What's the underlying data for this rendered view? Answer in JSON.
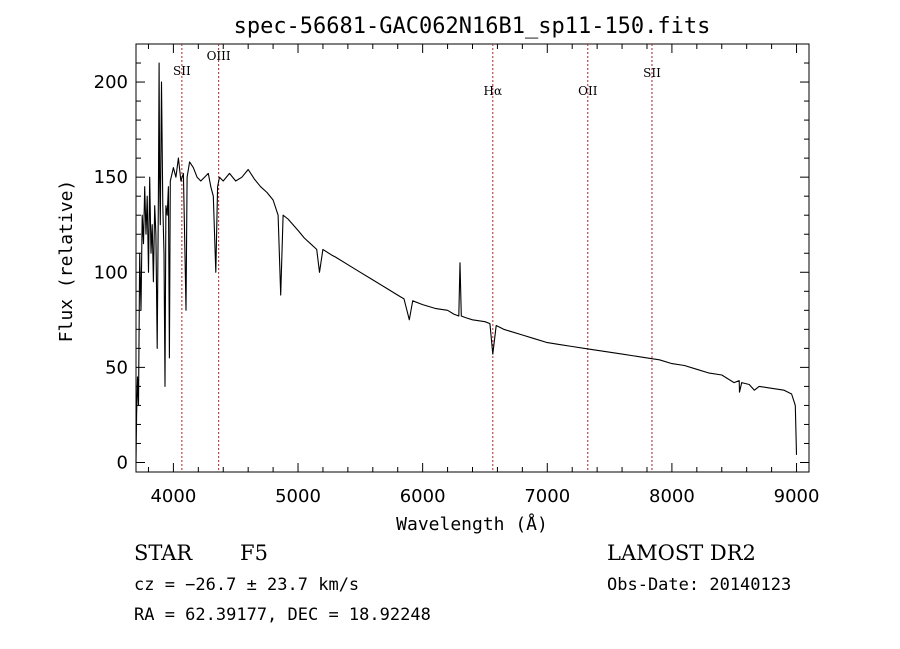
{
  "chart_data": {
    "type": "line",
    "title": "spec-56681-GAC062N16B1_sp11-150.fits",
    "xlabel": "Wavelength (Å)",
    "ylabel": "Flux (relative)",
    "xlim": [
      3700,
      9100
    ],
    "ylim": [
      -5,
      220
    ],
    "x_ticks": [
      4000,
      5000,
      6000,
      7000,
      8000,
      9000
    ],
    "y_ticks": [
      0,
      50,
      100,
      150,
      200
    ],
    "grid": false,
    "line_color": "#000000",
    "marker_color": "#b22222",
    "spectral_lines": [
      {
        "label": "SII",
        "x": 4068
      },
      {
        "label": "OIII",
        "x": 4363
      },
      {
        "label": "Hα",
        "x": 6563
      },
      {
        "label": "OII",
        "x": 7325
      },
      {
        "label": "SII",
        "x": 7840
      }
    ],
    "series": [
      {
        "x": [
          3700,
          3705,
          3712,
          3720,
          3730,
          3740,
          3750,
          3760,
          3770,
          3780,
          3790,
          3800,
          3810,
          3820,
          3830,
          3840,
          3850,
          3860,
          3870,
          3880,
          3885,
          3889,
          3895,
          3905,
          3915,
          3925,
          3933,
          3940,
          3950,
          3960,
          3968,
          3975,
          3990,
          4000,
          4020,
          4040,
          4060,
          4080,
          4090,
          4101,
          4110,
          4130,
          4160,
          4190,
          4220,
          4250,
          4280,
          4300,
          4320,
          4340,
          4355,
          4370,
          4400,
          4450,
          4500,
          4550,
          4600,
          4650,
          4700,
          4750,
          4800,
          4840,
          4861,
          4880,
          4920,
          5000,
          5050,
          5100,
          5150,
          5172,
          5200,
          5270,
          5300,
          5400,
          5500,
          5600,
          5700,
          5800,
          5850,
          5893,
          5920,
          6000,
          6100,
          6200,
          6250,
          6290,
          6300,
          6310,
          6350,
          6400,
          6500,
          6540,
          6563,
          6590,
          6650,
          6700,
          6800,
          6900,
          7000,
          7100,
          7200,
          7300,
          7400,
          7500,
          7600,
          7700,
          7800,
          7900,
          8000,
          8100,
          8200,
          8300,
          8400,
          8498,
          8540,
          8542,
          8560,
          8620,
          8662,
          8700,
          8800,
          8900,
          8960,
          8990,
          9000
        ],
        "y": [
          0,
          25,
          45,
          30,
          110,
          80,
          130,
          115,
          145,
          120,
          140,
          100,
          150,
          110,
          125,
          95,
          135,
          120,
          60,
          140,
          210,
          150,
          125,
          200,
          135,
          110,
          40,
          135,
          130,
          145,
          55,
          148,
          152,
          155,
          150,
          160,
          148,
          152,
          120,
          80,
          150,
          158,
          155,
          150,
          148,
          150,
          152,
          145,
          140,
          100,
          145,
          150,
          148,
          152,
          148,
          150,
          154,
          149,
          145,
          142,
          138,
          130,
          88,
          130,
          128,
          122,
          118,
          115,
          112,
          100,
          112,
          109,
          108,
          104,
          100,
          96,
          92,
          88,
          86,
          75,
          85,
          83,
          81,
          80,
          78,
          77,
          105,
          77,
          76,
          75,
          74,
          73,
          57,
          72,
          70,
          69,
          67,
          65,
          63,
          62,
          61,
          60,
          59,
          58,
          57,
          56,
          55,
          54,
          52,
          51,
          49,
          47,
          46,
          42,
          43,
          37,
          42,
          41,
          38,
          40,
          39,
          38,
          36,
          30,
          4
        ]
      }
    ]
  },
  "footer": {
    "object": "STAR",
    "subclass": "F5",
    "redshift": "cz = −26.7 ± 23.7 km/s",
    "coords": "RA =  62.39177, DEC =  18.92248",
    "survey": "LAMOST DR2",
    "obs_date": "Obs-Date: 20140123"
  }
}
